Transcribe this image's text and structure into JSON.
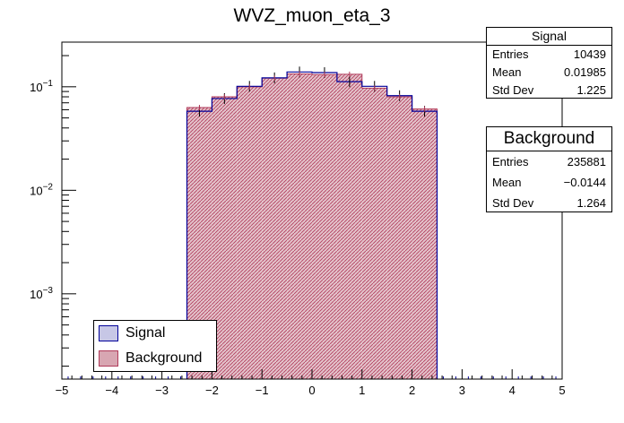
{
  "chart_data": {
    "type": "bar",
    "title": "WVZ_muon_eta_3",
    "xlabel": "",
    "ylabel": "",
    "xlim": [
      -5,
      5
    ],
    "ylog": true,
    "ylim": [
      0.00015,
      0.27
    ],
    "x_ticks": [
      "−5",
      "−4",
      "−3",
      "−2",
      "−1",
      "0",
      "1",
      "2",
      "3",
      "4",
      "5"
    ],
    "x_tick_values": [
      -5,
      -4,
      -3,
      -2,
      -1,
      0,
      1,
      2,
      3,
      4,
      5
    ],
    "y_ticks": [
      {
        "value": 0.1,
        "base": "10",
        "exp": "−1"
      },
      {
        "value": 0.01,
        "base": "10",
        "exp": "−2"
      },
      {
        "value": 0.001,
        "base": "10",
        "exp": "−3"
      }
    ],
    "bin_edges": [
      -2.5,
      -2.0,
      -1.5,
      -1.0,
      -0.5,
      0.0,
      0.5,
      1.0,
      1.5,
      2.0,
      2.5
    ],
    "series": [
      {
        "name": "Signal",
        "color": "#000099",
        "fill": "#c7c7e6",
        "values": [
          0.058,
          0.077,
          0.101,
          0.122,
          0.139,
          0.137,
          0.112,
          0.101,
          0.082,
          0.058
        ]
      },
      {
        "name": "Background",
        "color": "#b03a5a",
        "fill": "#d8a6b2",
        "values": [
          0.063,
          0.08,
          0.1,
          0.121,
          0.133,
          0.131,
          0.132,
          0.097,
          0.08,
          0.061
        ]
      }
    ],
    "legend_position": "bottom-left"
  },
  "stats": {
    "signal": {
      "title": "Signal",
      "rows": [
        {
          "label": "Entries",
          "value": "10439"
        },
        {
          "label": "Mean",
          "value": "0.01985"
        },
        {
          "label": "Std Dev",
          "value": "1.225"
        }
      ]
    },
    "background": {
      "title": "Background",
      "rows": [
        {
          "label": "Entries",
          "value": "235881"
        },
        {
          "label": "Mean",
          "value": "−0.0144"
        },
        {
          "label": "Std Dev",
          "value": "1.264"
        }
      ]
    }
  },
  "legend": {
    "entries": [
      {
        "label": "Signal"
      },
      {
        "label": "Background"
      }
    ]
  }
}
